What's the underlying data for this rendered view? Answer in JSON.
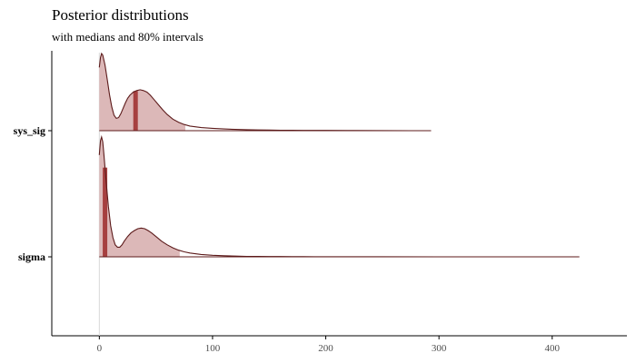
{
  "chart_data": {
    "type": "area",
    "title": "Posterior distributions",
    "subtitle": "with medians and 80% intervals",
    "xlabel": "",
    "ylabel": "",
    "xlim": [
      -42,
      466
    ],
    "x_ticks": [
      0,
      100,
      200,
      300,
      400
    ],
    "grid": false,
    "reference_line_x": 0,
    "colors": {
      "outline": "#5c1a1a",
      "interval_fill": "#dcb8b8",
      "median": "#a64040",
      "axis": "#000000",
      "reference_line": "#d9d9d9"
    },
    "series": [
      {
        "name": "sys_sig",
        "curve_x": [
          0,
          1,
          2,
          3,
          5,
          7,
          9,
          11,
          13,
          15,
          17,
          19,
          21,
          23,
          25,
          27,
          30,
          33,
          36,
          39,
          42,
          45,
          48,
          52,
          56,
          60,
          65,
          70,
          75,
          80,
          90,
          100,
          110,
          120,
          130,
          140,
          150,
          160,
          170,
          180,
          200,
          225,
          250,
          275,
          293
        ],
        "curve_y": [
          0.82,
          0.95,
          1.0,
          0.98,
          0.85,
          0.66,
          0.47,
          0.31,
          0.2,
          0.16,
          0.17,
          0.22,
          0.29,
          0.36,
          0.42,
          0.46,
          0.5,
          0.52,
          0.53,
          0.52,
          0.5,
          0.46,
          0.41,
          0.34,
          0.27,
          0.21,
          0.15,
          0.11,
          0.08,
          0.06,
          0.04,
          0.03,
          0.022,
          0.017,
          0.013,
          0.01,
          0.008,
          0.006,
          0.005,
          0.004,
          0.003,
          0.002,
          0.001,
          0.0005,
          0
        ],
        "median": 32,
        "interval_80": [
          0,
          76
        ]
      },
      {
        "name": "sigma",
        "curve_x": [
          0,
          1,
          2,
          3,
          4,
          6,
          8,
          10,
          12,
          14,
          16,
          18,
          20,
          22,
          25,
          28,
          31,
          34,
          37,
          40,
          43,
          46,
          50,
          55,
          60,
          65,
          70,
          75,
          80,
          90,
          100,
          110,
          120,
          130,
          140,
          150,
          160,
          170,
          180,
          190,
          200,
          250,
          300,
          350,
          400,
          424
        ],
        "curve_y": [
          0.85,
          0.97,
          1.0,
          0.96,
          0.86,
          0.63,
          0.42,
          0.26,
          0.16,
          0.1,
          0.08,
          0.08,
          0.1,
          0.13,
          0.17,
          0.2,
          0.22,
          0.235,
          0.24,
          0.235,
          0.22,
          0.2,
          0.17,
          0.13,
          0.1,
          0.075,
          0.055,
          0.042,
          0.032,
          0.02,
          0.013,
          0.009,
          0.006,
          0.004,
          0.003,
          0.0025,
          0.002,
          0.0016,
          0.0013,
          0.001,
          0.0008,
          0.0004,
          0.0002,
          0.0001,
          0
        ],
        "median": 5,
        "interval_80": [
          0,
          71
        ]
      }
    ]
  }
}
